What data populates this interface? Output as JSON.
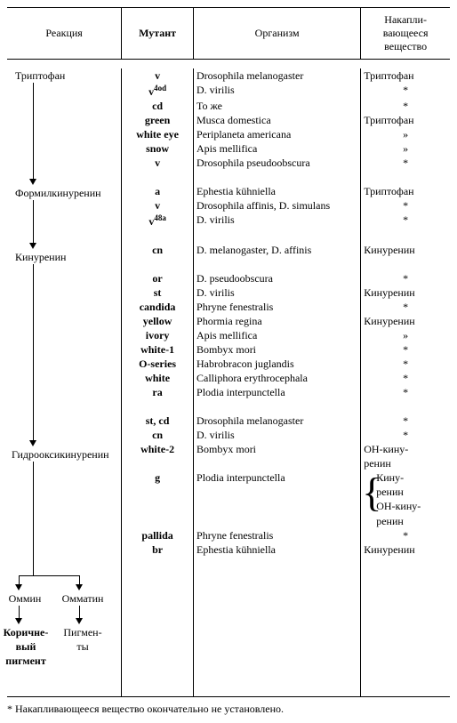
{
  "headers": {
    "reaction": "Реакция",
    "mutant": "Мутант",
    "organism": "Организм",
    "accum": "Накапли-\nвающееся\nвещество"
  },
  "pathway": {
    "n1": "Триптофан",
    "n2": "Формилкинуренин",
    "n3": "Кинуренин",
    "n4": "Гидрооксикинуренин",
    "b1": "Оммин",
    "b2": "Омматин",
    "b3": "Коричне-\nвый\nпигмент",
    "b4": "Пигмен-\nты"
  },
  "rows": [
    {
      "mutant": "v",
      "sup": "",
      "organism": "Drosophila melanogaster",
      "accum": "Триптофан"
    },
    {
      "mutant": "v",
      "sup": "4od",
      "organism": "D. virilis",
      "accum": "*"
    },
    {
      "mutant": "cd",
      "sup": "",
      "organism": "То же",
      "accum": "*"
    },
    {
      "mutant": "green",
      "sup": "",
      "organism": "Musca domestica",
      "accum": "Триптофан"
    },
    {
      "mutant": "white eye",
      "sup": "",
      "organism": "Periplaneta americana",
      "accum": "»"
    },
    {
      "mutant": "snow",
      "sup": "",
      "organism": "Apis mellifica",
      "accum": "»"
    },
    {
      "mutant": "v",
      "sup": "",
      "organism": "Drosophila pseudoobscura",
      "accum": "*"
    },
    {
      "mutant": "",
      "sup": "",
      "organism": "",
      "accum": ""
    },
    {
      "mutant": "a",
      "sup": "",
      "organism": "Ephestia kühniella",
      "accum": "Триптофан"
    },
    {
      "mutant": "v",
      "sup": "",
      "organism": "Drosophila   affinis,   D. simulans",
      "accum": "*"
    },
    {
      "mutant": "v",
      "sup": "48a",
      "organism": "D. virilis",
      "accum": "*"
    },
    {
      "mutant": "",
      "sup": "",
      "organism": "",
      "accum": ""
    },
    {
      "mutant": "cn",
      "sup": "",
      "organism": "D. melanogaster, D. affinis",
      "accum": "Кинуренин"
    },
    {
      "mutant": "",
      "sup": "",
      "organism": "",
      "accum": ""
    },
    {
      "mutant": "or",
      "sup": "",
      "organism": "D. pseudoobscura",
      "accum": "*"
    },
    {
      "mutant": "st",
      "sup": "",
      "organism": "D. virilis",
      "accum": "Кинуренин"
    },
    {
      "mutant": "candida",
      "sup": "",
      "organism": "Phryne fenestralis",
      "accum": "*"
    },
    {
      "mutant": "yellow",
      "sup": "",
      "organism": "Phormia regina",
      "accum": "Кинуренин"
    },
    {
      "mutant": "ivory",
      "sup": "",
      "organism": "Apis mellifica",
      "accum": "»"
    },
    {
      "mutant": "white-1",
      "sup": "",
      "organism": "Bombyx mori",
      "accum": "*"
    },
    {
      "mutant": "O-series",
      "sup": "",
      "organism": "Habrobracon juglandis",
      "accum": "*"
    },
    {
      "mutant": "white",
      "sup": "",
      "organism": "Calliphora   erythroce­phala",
      "accum": "*"
    },
    {
      "mutant": "ra",
      "sup": "",
      "organism": "Plodia interpunctella",
      "accum": "*"
    },
    {
      "mutant": "",
      "sup": "",
      "organism": "",
      "accum": ""
    },
    {
      "mutant": "st, cd",
      "sup": "",
      "organism": "Drosophila melanogaster",
      "accum": "*"
    },
    {
      "mutant": "cn",
      "sup": "",
      "organism": "D. virilis",
      "accum": "*"
    },
    {
      "mutant": "white-2",
      "sup": "",
      "organism": "Bombyx mori",
      "accum": "OH-кину-\nренин"
    },
    {
      "mutant": "g",
      "sup": "",
      "organism": "Plodia interpunctella",
      "accum": "Кину-\nренин\nOH-кину-\nренин",
      "brace": true
    },
    {
      "mutant": "pallida",
      "sup": "",
      "organism": "Phryne fenestralis",
      "accum": "*"
    },
    {
      "mutant": "br",
      "sup": "",
      "organism": "Ephestia kühniella",
      "accum": "Кинуренин"
    }
  ],
  "footnote": "* Накапливающееся вещество окончательно не установлено."
}
